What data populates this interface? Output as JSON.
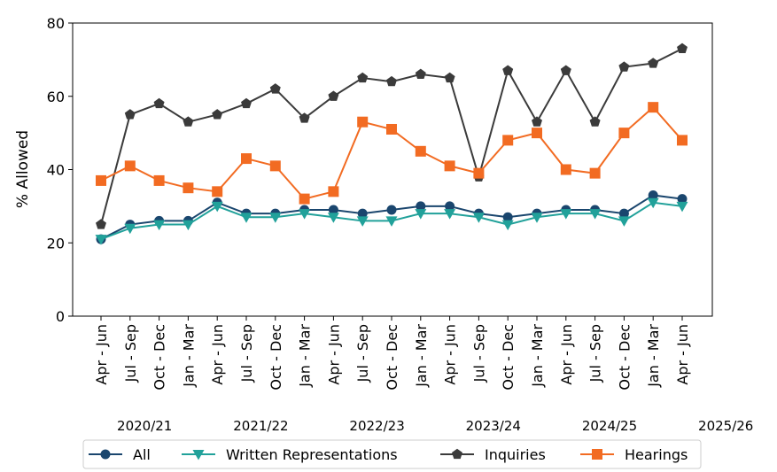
{
  "chart_data": {
    "type": "line",
    "title": "",
    "xlabel": "",
    "ylabel": "% Allowed",
    "ylim": [
      0,
      80
    ],
    "yticks": [
      0,
      20,
      40,
      60,
      80
    ],
    "categories": [
      "Apr - Jun",
      "Jul - Sep",
      "Oct - Dec",
      "Jan - Mar",
      "Apr - Jun",
      "Jul - Sep",
      "Oct - Dec",
      "Jan - Mar",
      "Apr - Jun",
      "Jul - Sep",
      "Oct - Dec",
      "Jan - Mar",
      "Apr - Jun",
      "Jul - Sep",
      "Oct - Dec",
      "Jan - Mar",
      "Apr - Jun",
      "Jul - Sep",
      "Oct - Dec",
      "Jan - Mar",
      "Apr - Jun"
    ],
    "financial_years": [
      "2020/21",
      "2021/22",
      "2022/23",
      "2023/24",
      "2024/25",
      "2025/26"
    ],
    "grid": false,
    "legend_position": "bottom",
    "series": [
      {
        "name": "All",
        "color": "#1a466e",
        "marker": "circle",
        "values": [
          21,
          25,
          26,
          26,
          31,
          28,
          28,
          29,
          29,
          28,
          29,
          30,
          30,
          28,
          27,
          28,
          29,
          29,
          28,
          33,
          32
        ]
      },
      {
        "name": "Written Representations",
        "color": "#21a19a",
        "marker": "triangle-down",
        "values": [
          21,
          24,
          25,
          25,
          30,
          27,
          27,
          28,
          27,
          26,
          26,
          28,
          28,
          27,
          25,
          27,
          28,
          28,
          26,
          31,
          30
        ]
      },
      {
        "name": "Inquiries",
        "color": "#3b3b3b",
        "marker": "pentagon",
        "values": [
          25,
          55,
          58,
          53,
          55,
          58,
          62,
          54,
          60,
          65,
          64,
          66,
          65,
          38,
          67,
          53,
          67,
          53,
          68,
          69,
          73
        ]
      },
      {
        "name": "Hearings",
        "color": "#f26b22",
        "marker": "square",
        "values": [
          37,
          41,
          37,
          35,
          34,
          43,
          41,
          32,
          34,
          53,
          51,
          45,
          41,
          39,
          48,
          50,
          40,
          39,
          50,
          57,
          48
        ]
      }
    ]
  }
}
